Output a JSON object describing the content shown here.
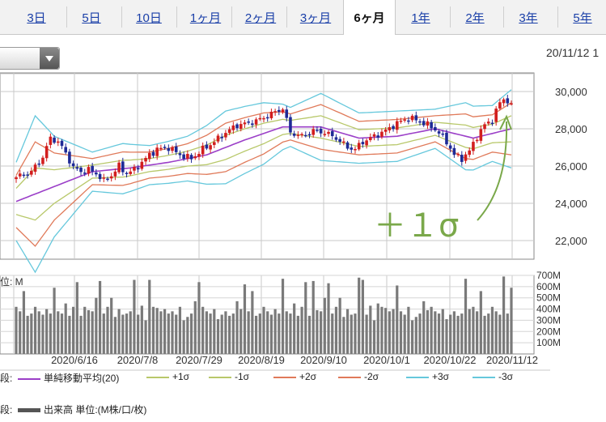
{
  "tabs": [
    {
      "label": "3日",
      "active": false
    },
    {
      "label": "5日",
      "active": false
    },
    {
      "label": "10日",
      "active": false
    },
    {
      "label": "1ヶ月",
      "active": false
    },
    {
      "label": "2ヶ月",
      "active": false
    },
    {
      "label": "3ヶ月",
      "active": false
    },
    {
      "label": "6ヶ月",
      "active": true
    },
    {
      "label": "1年",
      "active": false
    },
    {
      "label": "2年",
      "active": false
    },
    {
      "label": "3年",
      "active": false
    },
    {
      "label": "5年",
      "active": false
    }
  ],
  "header": {
    "date": "20/11/12 1"
  },
  "annotation": {
    "text": "＋１σ",
    "color": "#7aa84a"
  },
  "colors": {
    "candle_up": "#d21e1e",
    "candle_down": "#1e2a96",
    "sma": "#9b3fc8",
    "band1": "#b8c86a",
    "band2": "#e07a5a",
    "band3": "#66c8dc",
    "volume": "#7a7a7a"
  },
  "chart_data": [
    {
      "type": "candlestick",
      "ylim": [
        21000,
        31000
      ],
      "ytick_labels": [
        "30,000",
        "28,000",
        "26,000",
        "24,000",
        "22,000"
      ],
      "ytick_values": [
        30000,
        28000,
        26000,
        24000,
        22000
      ],
      "xtick_labels": [
        "2020/6/16",
        "2020/7/8",
        "2020/7/29",
        "2020/8/19",
        "2020/9/10",
        "2020/10/1",
        "2020/10/22",
        "2020/11/12"
      ],
      "close_trend": [
        [
          0,
          25400
        ],
        [
          4,
          25700
        ],
        [
          7,
          26500
        ],
        [
          9,
          27500
        ],
        [
          11,
          27300
        ],
        [
          13,
          26700
        ],
        [
          15,
          25900
        ],
        [
          17,
          25700
        ],
        [
          19,
          25800
        ],
        [
          21,
          25600
        ],
        [
          23,
          25200
        ],
        [
          25,
          25500
        ],
        [
          27,
          26000
        ],
        [
          29,
          25600
        ],
        [
          31,
          25800
        ],
        [
          33,
          26200
        ],
        [
          35,
          26600
        ],
        [
          37,
          26900
        ],
        [
          40,
          27000
        ],
        [
          43,
          26600
        ],
        [
          46,
          26400
        ],
        [
          49,
          26900
        ],
        [
          52,
          27300
        ],
        [
          55,
          27800
        ],
        [
          58,
          28200
        ],
        [
          61,
          28300
        ],
        [
          64,
          28500
        ],
        [
          67,
          28800
        ],
        [
          70,
          29100
        ],
        [
          72,
          27800
        ],
        [
          75,
          27600
        ],
        [
          78,
          27900
        ],
        [
          81,
          27800
        ],
        [
          84,
          27500
        ],
        [
          87,
          27000
        ],
        [
          89,
          26900
        ],
        [
          91,
          27300
        ],
        [
          94,
          27600
        ],
        [
          97,
          27900
        ],
        [
          100,
          28300
        ],
        [
          103,
          28600
        ],
        [
          106,
          28400
        ],
        [
          109,
          28100
        ],
        [
          111,
          27800
        ],
        [
          113,
          27300
        ],
        [
          115,
          26600
        ],
        [
          117,
          26400
        ],
        [
          119,
          26800
        ],
        [
          121,
          27600
        ],
        [
          123,
          28200
        ],
        [
          125,
          28500
        ],
        [
          127,
          29400
        ],
        [
          128,
          29600
        ],
        [
          129,
          29500
        ],
        [
          130,
          29200
        ]
      ],
      "sma_trend": [
        [
          0,
          24100
        ],
        [
          10,
          24900
        ],
        [
          20,
          25700
        ],
        [
          30,
          25900
        ],
        [
          40,
          26200
        ],
        [
          50,
          26600
        ],
        [
          60,
          27400
        ],
        [
          70,
          28100
        ],
        [
          80,
          28100
        ],
        [
          90,
          27500
        ],
        [
          100,
          27600
        ],
        [
          110,
          28000
        ],
        [
          120,
          27500
        ],
        [
          130,
          28000
        ]
      ],
      "sigma_width_trend": [
        [
          0,
          700
        ],
        [
          5,
          1400
        ],
        [
          10,
          900
        ],
        [
          20,
          350
        ],
        [
          28,
          450
        ],
        [
          35,
          350
        ],
        [
          45,
          400
        ],
        [
          55,
          650
        ],
        [
          65,
          550
        ],
        [
          72,
          350
        ],
        [
          80,
          600
        ],
        [
          90,
          450
        ],
        [
          100,
          450
        ],
        [
          110,
          350
        ],
        [
          118,
          600
        ],
        [
          125,
          500
        ],
        [
          130,
          700
        ]
      ],
      "series": [
        {
          "name": "単純移動平均(20)"
        },
        {
          "name": "+1σ"
        },
        {
          "name": "-1σ"
        },
        {
          "name": "+2σ"
        },
        {
          "name": "-2σ"
        },
        {
          "name": "+3σ"
        },
        {
          "name": "-3σ"
        }
      ]
    },
    {
      "type": "bar",
      "ylim": [
        0,
        700
      ],
      "ytick_labels": [
        "700M",
        "600M",
        "500M",
        "400M",
        "300M",
        "200M",
        "100M"
      ],
      "ytick_values": [
        700,
        600,
        500,
        400,
        300,
        200,
        100
      ],
      "axis_unit": "M",
      "volume_pattern": [
        420,
        380,
        560,
        340,
        360,
        420,
        380,
        350,
        400,
        360,
        590,
        380,
        360,
        450,
        340,
        420,
        640,
        340,
        420,
        390,
        380,
        500,
        630,
        360,
        420,
        500,
        330,
        400,
        350,
        360,
        380,
        660,
        350,
        430,
        300,
        450,
        420,
        410,
        380,
        400,
        360,
        380,
        350,
        420,
        300,
        330,
        360,
        470,
        390,
        420,
        380,
        360,
        400,
        310,
        350,
        380,
        340,
        360,
        470,
        400
      ],
      "spikes": [
        [
          22,
          650
        ],
        [
          35,
          660
        ],
        [
          48,
          640
        ],
        [
          60,
          620
        ],
        [
          70,
          670
        ],
        [
          78,
          650
        ],
        [
          90,
          680
        ],
        [
          100,
          610
        ],
        [
          118,
          670
        ],
        [
          128,
          690
        ]
      ],
      "series": [
        {
          "name": "出来高 単位:(M株/口/枚)"
        }
      ]
    }
  ],
  "legend": {
    "row1_prefix": "段:",
    "row2_prefix": "段:",
    "top_fragment": "位: M"
  }
}
